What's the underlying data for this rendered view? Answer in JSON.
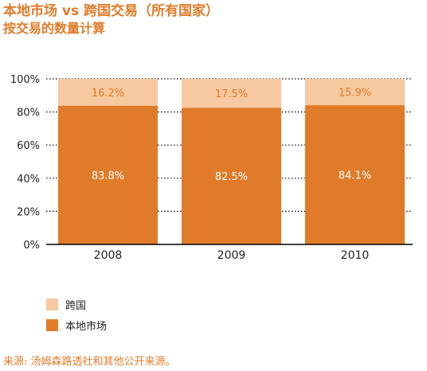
{
  "title": "本地市场 vs 跨国交易（所有国家）",
  "subtitle": "按交易的数量计算",
  "source": "来源: 汤姆森路透社和其他公开来源。",
  "colors": {
    "title": "#e07b2a",
    "local": "#e07b2a",
    "cross_border": "#f6c9a0",
    "axis": "#000000",
    "grid": "#000000"
  },
  "chart_data": {
    "type": "bar",
    "stacked": true,
    "categories": [
      "2008",
      "2009",
      "2010"
    ],
    "series": [
      {
        "name": "本地市场",
        "values": [
          83.8,
          82.5,
          84.1
        ],
        "labels": [
          "83.8%",
          "82.5%",
          "84.1%"
        ],
        "color": "#e07b2a"
      },
      {
        "name": "跨国",
        "values": [
          16.2,
          17.5,
          15.9
        ],
        "labels": [
          "16.2%",
          "17.5%",
          "15.9%"
        ],
        "color": "#f6c9a0"
      }
    ],
    "yticks": [
      0,
      20,
      40,
      60,
      80,
      100
    ],
    "ytick_labels": [
      "0%",
      "20%",
      "40%",
      "60%",
      "80%",
      "100%"
    ],
    "ylim": [
      0,
      100
    ],
    "grid": "dotted horizontal",
    "legend": [
      {
        "name": "跨国",
        "color": "#f6c9a0"
      },
      {
        "name": "本地市场",
        "color": "#e07b2a"
      }
    ],
    "legend_position": "bottom-left"
  }
}
